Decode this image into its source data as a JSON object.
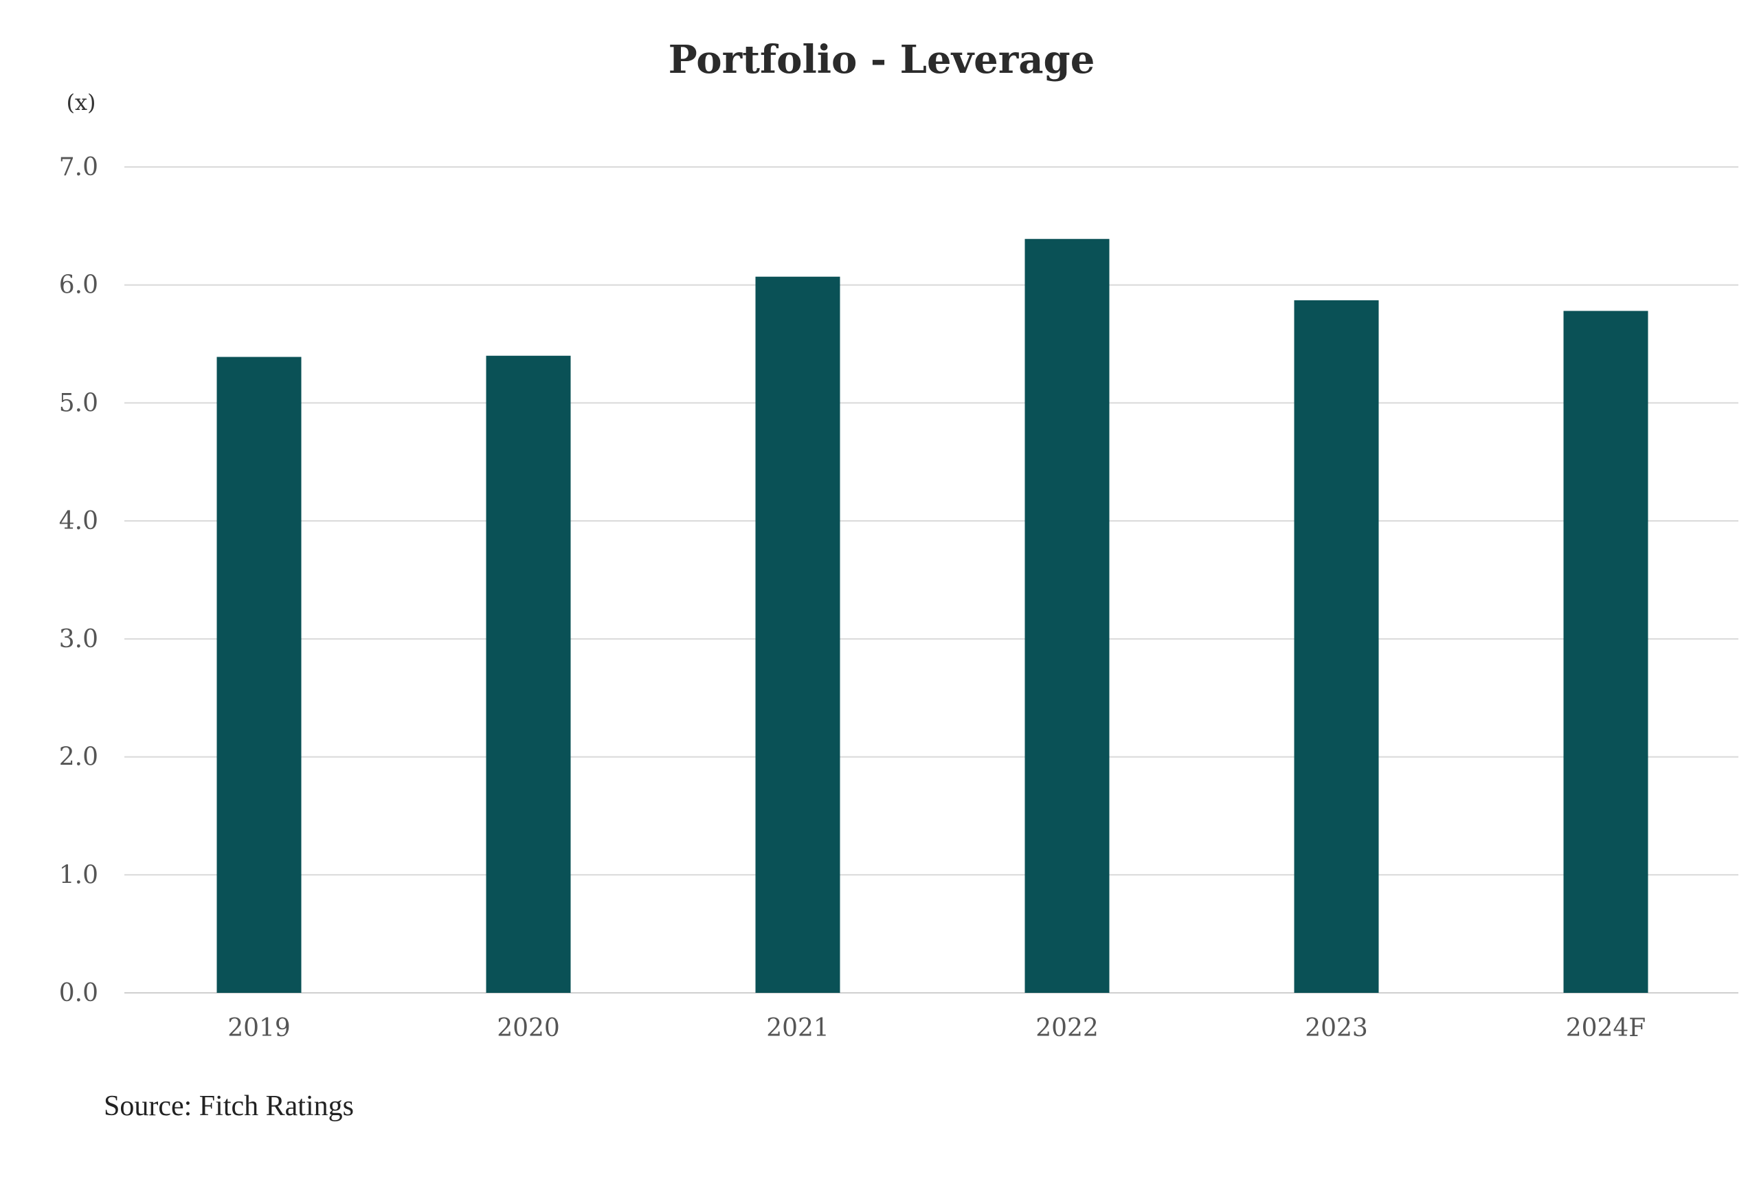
{
  "chart_data": {
    "type": "bar",
    "title": "Portfolio - Leverage",
    "ylabel": "(x)",
    "xlabel": "",
    "categories": [
      "2019",
      "2020",
      "2021",
      "2022",
      "2023",
      "2024F"
    ],
    "values": [
      5.39,
      5.4,
      6.07,
      6.39,
      5.87,
      5.78
    ],
    "ylim": [
      0,
      7
    ],
    "yticks": [
      "0.0",
      "1.0",
      "2.0",
      "3.0",
      "4.0",
      "5.0",
      "6.0",
      "7.0"
    ],
    "grid": true,
    "bar_color": "#0a5156",
    "source": "Source: Fitch Ratings"
  }
}
